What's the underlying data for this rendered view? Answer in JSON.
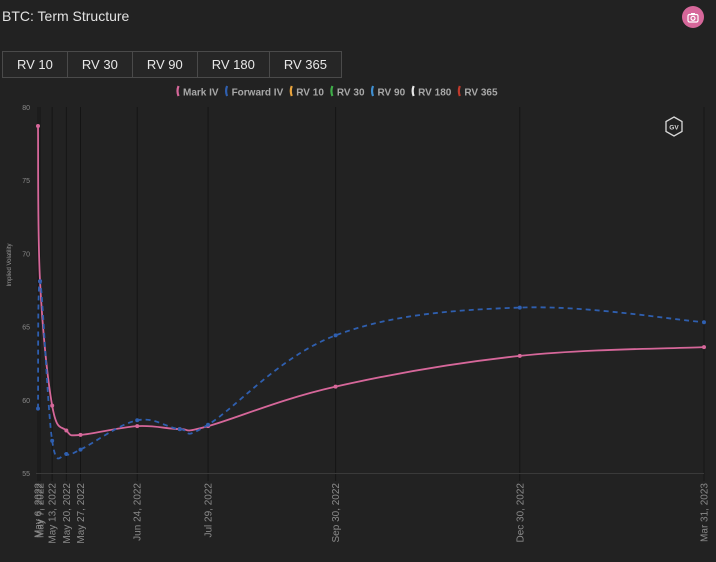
{
  "header": {
    "title": "BTC: Term Structure",
    "camera_icon": "camera-icon"
  },
  "tabs": [
    {
      "label": "RV 10"
    },
    {
      "label": "RV 30"
    },
    {
      "label": "RV 90"
    },
    {
      "label": "RV 180"
    },
    {
      "label": "RV 365"
    }
  ],
  "watermark_icon": "hexagon-logo-icon",
  "chart_data": {
    "type": "line",
    "title": "",
    "xlabel": "",
    "ylabel": "Implied Volatility",
    "ylim": [
      55,
      80
    ],
    "yticks": [
      55,
      60,
      65,
      70,
      75,
      80
    ],
    "x_axis_type": "date",
    "xlim": [
      "2022-05-06",
      "2023-03-31"
    ],
    "xticks": [
      {
        "date": "2022-05-06",
        "label": "May 6, 2022"
      },
      {
        "date": "2022-05-07",
        "label": "May 7, 2022"
      },
      {
        "date": "2022-05-13",
        "label": "May 13, 2022"
      },
      {
        "date": "2022-05-20",
        "label": "May 20, 2022"
      },
      {
        "date": "2022-05-27",
        "label": "May 27, 2022"
      },
      {
        "date": "2022-06-24",
        "label": "Jun 24, 2022"
      },
      {
        "date": "2022-07-29",
        "label": "Jul 29, 2022"
      },
      {
        "date": "2022-09-30",
        "label": "Sep 30, 2022"
      },
      {
        "date": "2022-12-30",
        "label": "Dec 30, 2022"
      },
      {
        "date": "2023-03-31",
        "label": "Mar 31, 2023"
      }
    ],
    "grid": true,
    "legend_position": "top-center",
    "series": [
      {
        "name": "Mark IV",
        "color": "#d6679a",
        "dash": "solid",
        "points": [
          {
            "x": "2022-05-06",
            "y": 78.7
          },
          {
            "x": "2022-05-07",
            "y": 68.1
          },
          {
            "x": "2022-05-13",
            "y": 59.6
          },
          {
            "x": "2022-05-20",
            "y": 57.9
          },
          {
            "x": "2022-05-27",
            "y": 57.6
          },
          {
            "x": "2022-06-24",
            "y": 58.2
          },
          {
            "x": "2022-07-15",
            "y": 58.0
          },
          {
            "x": "2022-07-29",
            "y": 58.2
          },
          {
            "x": "2022-09-30",
            "y": 60.9
          },
          {
            "x": "2022-12-30",
            "y": 63.0
          },
          {
            "x": "2023-03-31",
            "y": 63.6
          }
        ]
      },
      {
        "name": "Forward IV",
        "color": "#2f5faf",
        "dash": "dashed",
        "points": [
          {
            "x": "2022-05-06",
            "y": 59.4
          },
          {
            "x": "2022-05-07",
            "y": 68.1
          },
          {
            "x": "2022-05-13",
            "y": 57.2
          },
          {
            "x": "2022-05-20",
            "y": 56.3
          },
          {
            "x": "2022-05-27",
            "y": 56.6
          },
          {
            "x": "2022-06-24",
            "y": 58.6
          },
          {
            "x": "2022-07-15",
            "y": 58.0
          },
          {
            "x": "2022-07-29",
            "y": 58.3
          },
          {
            "x": "2022-09-30",
            "y": 64.4
          },
          {
            "x": "2022-12-30",
            "y": 66.3
          },
          {
            "x": "2023-03-31",
            "y": 65.3
          }
        ]
      },
      {
        "name": "RV 10",
        "color": "#e8a33d",
        "points": []
      },
      {
        "name": "RV 30",
        "color": "#3fae49",
        "points": []
      },
      {
        "name": "RV 90",
        "color": "#3f8fd1",
        "points": []
      },
      {
        "name": "RV 180",
        "color": "#e8e8e8",
        "points": []
      },
      {
        "name": "RV 365",
        "color": "#c0392b",
        "points": []
      }
    ]
  }
}
